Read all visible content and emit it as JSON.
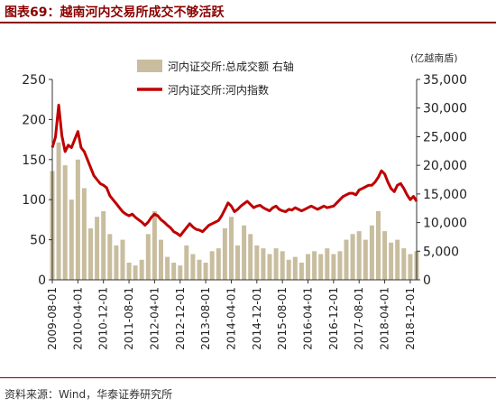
{
  "header": {
    "title": "图表69：越南河内交易所成交不够活跃"
  },
  "footer": {
    "source": "资料来源：Wind，华泰证券研究所"
  },
  "colors": {
    "bar": "#c8bd9e",
    "line": "#c00000",
    "axis": "#333333",
    "title": "#8b0000"
  },
  "chart_data": {
    "type": "bar+line",
    "unit_label": "(亿越南盾)",
    "x_tick_labels": [
      "2009-08-01",
      "2010-04-01",
      "2010-12-01",
      "2011-08-01",
      "2012-04-01",
      "2012-12-01",
      "2013-08-01",
      "2014-04-01",
      "2014-12-01",
      "2015-08-01",
      "2016-04-01",
      "2016-12-01",
      "2017-08-01",
      "2018-04-01",
      "2018-12-01"
    ],
    "y_left": {
      "ticks": [
        0,
        50,
        100,
        150,
        200,
        250
      ],
      "ylim": [
        0,
        250
      ]
    },
    "y_right": {
      "ticks": [
        "0",
        "5,000",
        "10,000",
        "15,000",
        "20,000",
        "25,000",
        "30,000",
        "35,000"
      ],
      "ylim": [
        0,
        35000
      ]
    },
    "legend": {
      "placement": "top-center"
    },
    "series": [
      {
        "name": "河内证交所:总成交额 右轴",
        "type": "bar",
        "axis": "right",
        "x": [
          "2009-08",
          "2009-10",
          "2009-12",
          "2010-02",
          "2010-04",
          "2010-06",
          "2010-08",
          "2010-10",
          "2010-12",
          "2011-02",
          "2011-04",
          "2011-06",
          "2011-08",
          "2011-10",
          "2011-12",
          "2012-02",
          "2012-04",
          "2012-06",
          "2012-08",
          "2012-10",
          "2012-12",
          "2013-02",
          "2013-04",
          "2013-06",
          "2013-08",
          "2013-10",
          "2013-12",
          "2014-02",
          "2014-04",
          "2014-06",
          "2014-08",
          "2014-10",
          "2014-12",
          "2015-02",
          "2015-04",
          "2015-06",
          "2015-08",
          "2015-10",
          "2015-12",
          "2016-02",
          "2016-04",
          "2016-06",
          "2016-08",
          "2016-10",
          "2016-12",
          "2017-02",
          "2017-04",
          "2017-06",
          "2017-08",
          "2017-10",
          "2017-12",
          "2018-02",
          "2018-04",
          "2018-06",
          "2018-08",
          "2018-10",
          "2018-12",
          "2019-02"
        ],
        "values": [
          19000,
          24000,
          20000,
          14000,
          21000,
          16000,
          9000,
          11000,
          12000,
          8000,
          6000,
          7000,
          3000,
          2500,
          3500,
          8000,
          12000,
          7000,
          4000,
          3000,
          2500,
          6000,
          4500,
          3500,
          3000,
          5000,
          5500,
          9000,
          11000,
          6000,
          9500,
          8000,
          6000,
          5500,
          4500,
          5500,
          5000,
          3500,
          4000,
          3000,
          4500,
          5000,
          4500,
          5500,
          4500,
          5000,
          7000,
          8000,
          8500,
          7000,
          9500,
          12000,
          8500,
          6500,
          7000,
          5500,
          4500,
          5000
        ]
      },
      {
        "name": "河内证交所:河内指数",
        "type": "line",
        "axis": "left",
        "x": [
          "2009-08",
          "2009-09",
          "2009-10",
          "2009-11",
          "2009-12",
          "2010-01",
          "2010-02",
          "2010-03",
          "2010-04",
          "2010-05",
          "2010-06",
          "2010-07",
          "2010-08",
          "2010-09",
          "2010-10",
          "2010-11",
          "2010-12",
          "2011-01",
          "2011-02",
          "2011-03",
          "2011-04",
          "2011-05",
          "2011-06",
          "2011-07",
          "2011-08",
          "2011-09",
          "2011-10",
          "2011-11",
          "2011-12",
          "2012-01",
          "2012-02",
          "2012-03",
          "2012-04",
          "2012-05",
          "2012-06",
          "2012-07",
          "2012-08",
          "2012-09",
          "2012-10",
          "2012-11",
          "2012-12",
          "2013-01",
          "2013-02",
          "2013-03",
          "2013-04",
          "2013-05",
          "2013-06",
          "2013-07",
          "2013-08",
          "2013-09",
          "2013-10",
          "2013-11",
          "2013-12",
          "2014-01",
          "2014-02",
          "2014-03",
          "2014-04",
          "2014-05",
          "2014-06",
          "2014-07",
          "2014-08",
          "2014-09",
          "2014-10",
          "2014-11",
          "2014-12",
          "2015-01",
          "2015-02",
          "2015-03",
          "2015-04",
          "2015-05",
          "2015-06",
          "2015-07",
          "2015-08",
          "2015-09",
          "2015-10",
          "2015-11",
          "2015-12",
          "2016-01",
          "2016-02",
          "2016-03",
          "2016-04",
          "2016-05",
          "2016-06",
          "2016-07",
          "2016-08",
          "2016-09",
          "2016-10",
          "2016-12",
          "2017-01",
          "2017-02",
          "2017-03",
          "2017-04",
          "2017-05",
          "2017-06",
          "2017-07",
          "2017-08",
          "2017-09",
          "2017-10",
          "2017-11",
          "2017-12",
          "2018-01",
          "2018-02",
          "2018-03",
          "2018-04",
          "2018-05",
          "2018-06",
          "2018-07",
          "2018-08",
          "2018-09",
          "2018-10",
          "2018-11",
          "2018-12",
          "2019-01",
          "2019-02"
        ],
        "values": [
          165,
          178,
          218,
          180,
          160,
          168,
          165,
          175,
          185,
          165,
          160,
          150,
          140,
          130,
          125,
          120,
          118,
          115,
          105,
          100,
          95,
          90,
          85,
          82,
          80,
          82,
          78,
          75,
          72,
          68,
          72,
          78,
          82,
          80,
          75,
          72,
          68,
          65,
          60,
          58,
          55,
          60,
          65,
          70,
          66,
          63,
          62,
          60,
          64,
          68,
          70,
          72,
          74,
          80,
          88,
          96,
          92,
          85,
          88,
          92,
          95,
          98,
          94,
          90,
          92,
          93,
          90,
          88,
          86,
          90,
          92,
          88,
          86,
          85,
          88,
          87,
          90,
          88,
          86,
          88,
          90,
          92,
          90,
          88,
          90,
          92,
          90,
          92,
          96,
          100,
          104,
          106,
          108,
          108,
          106,
          112,
          114,
          116,
          118,
          118,
          122,
          128,
          136,
          132,
          122,
          114,
          110,
          118,
          120,
          114,
          106,
          100,
          104,
          98
        ]
      }
    ]
  }
}
